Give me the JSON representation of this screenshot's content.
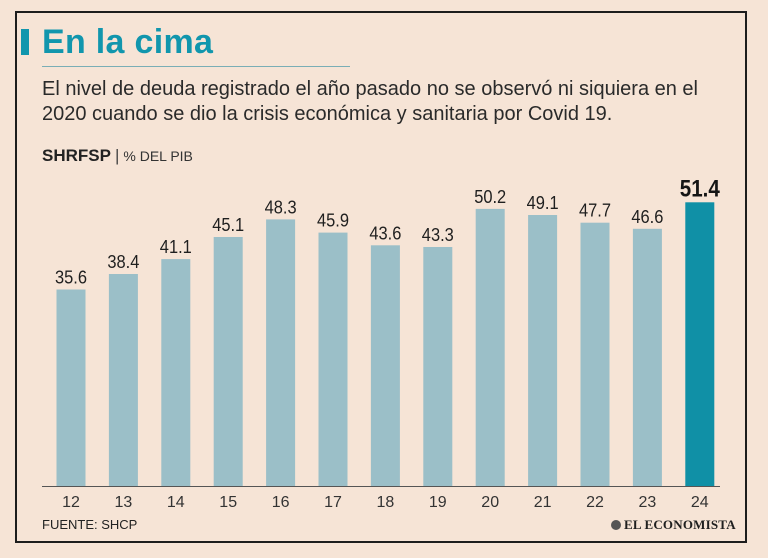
{
  "header": {
    "title": "En la cima",
    "subtitle": "El nivel de deuda registrado el año pasado no se observó ni siquiera en el 2020 cuando se dio la crisis económica y sanitaria por Covid 19.",
    "series_name": "SHRFSP",
    "separator": "|",
    "unit": "% DEL PIB"
  },
  "footer": {
    "source": "FUENTE: SHCP",
    "brand": "EL ECONOMISTA"
  },
  "colors": {
    "background": "#f6e4d6",
    "bar": "#9bbfc8",
    "highlight_bar": "#1090a6",
    "title": "#1196ad"
  },
  "chart_data": {
    "type": "bar",
    "title": "SHRFSP",
    "ylabel": "% DEL PIB",
    "xlabel": "",
    "categories": [
      "12",
      "13",
      "14",
      "15",
      "16",
      "17",
      "18",
      "19",
      "20",
      "21",
      "22",
      "23",
      "24"
    ],
    "values": [
      35.6,
      38.4,
      41.1,
      45.1,
      48.3,
      45.9,
      43.6,
      43.3,
      50.2,
      49.1,
      47.7,
      46.6,
      51.4
    ],
    "labels": [
      "35.6",
      "38.4",
      "41.1",
      "45.1",
      "48.3",
      "45.9",
      "43.6",
      "43.3",
      "50.2",
      "49.1",
      "47.7",
      "46.6",
      "51.4"
    ],
    "highlight": "24",
    "ylim": [
      0,
      60
    ],
    "grid": false
  }
}
